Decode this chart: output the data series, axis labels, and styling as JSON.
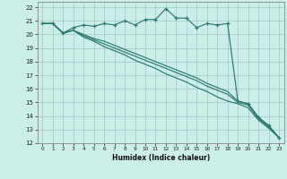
{
  "xlabel": "Humidex (Indice chaleur)",
  "bg_color": "#cceee8",
  "plot_bg_color": "#cceee8",
  "grid_color": "#aacccc",
  "line_color": "#2a7a70",
  "xlim": [
    -0.5,
    23.5
  ],
  "ylim": [
    12,
    22.4
  ],
  "yticks": [
    12,
    13,
    14,
    15,
    16,
    17,
    18,
    19,
    20,
    21,
    22
  ],
  "xticks": [
    0,
    1,
    2,
    3,
    4,
    5,
    6,
    7,
    8,
    9,
    10,
    11,
    12,
    13,
    14,
    15,
    16,
    17,
    18,
    19,
    20,
    21,
    22,
    23
  ],
  "series1_x": [
    0,
    1,
    2,
    3,
    4,
    5,
    6,
    7,
    8,
    9,
    10,
    11,
    12,
    13,
    14,
    15,
    16,
    17,
    18,
    19,
    20,
    21,
    22,
    23
  ],
  "series1_y": [
    20.8,
    20.8,
    20.1,
    20.5,
    20.7,
    20.6,
    20.8,
    20.7,
    21.0,
    20.7,
    21.1,
    21.1,
    21.9,
    21.2,
    21.2,
    20.5,
    20.8,
    20.7,
    20.8,
    15.1,
    14.9,
    13.9,
    13.3,
    12.4
  ],
  "series2_x": [
    0,
    1,
    2,
    3,
    4,
    5,
    6,
    7,
    8,
    9,
    10,
    11,
    12,
    13,
    14,
    15,
    16,
    17,
    18,
    19,
    20,
    21,
    22,
    23
  ],
  "series2_y": [
    20.8,
    20.8,
    20.1,
    20.3,
    20.0,
    19.7,
    19.5,
    19.2,
    18.9,
    18.6,
    18.3,
    18.0,
    17.7,
    17.4,
    17.1,
    16.8,
    16.4,
    16.1,
    15.8,
    15.1,
    14.9,
    13.9,
    13.3,
    12.4
  ],
  "series3_x": [
    0,
    1,
    2,
    3,
    4,
    5,
    6,
    7,
    8,
    9,
    10,
    11,
    12,
    13,
    14,
    15,
    16,
    17,
    18,
    19,
    20,
    21,
    22,
    23
  ],
  "series3_y": [
    20.8,
    20.8,
    20.1,
    20.3,
    19.9,
    19.6,
    19.3,
    19.0,
    18.7,
    18.4,
    18.1,
    17.8,
    17.5,
    17.2,
    16.9,
    16.6,
    16.2,
    15.9,
    15.6,
    15.0,
    14.8,
    13.8,
    13.2,
    12.4
  ],
  "series4_x": [
    0,
    1,
    2,
    3,
    4,
    5,
    6,
    7,
    8,
    9,
    10,
    11,
    12,
    13,
    14,
    15,
    16,
    17,
    18,
    19,
    20,
    21,
    22,
    23
  ],
  "series4_y": [
    20.8,
    20.8,
    20.1,
    20.3,
    19.8,
    19.5,
    19.1,
    18.8,
    18.5,
    18.1,
    17.8,
    17.5,
    17.1,
    16.8,
    16.5,
    16.1,
    15.8,
    15.4,
    15.1,
    14.9,
    14.6,
    13.7,
    13.1,
    12.4
  ]
}
